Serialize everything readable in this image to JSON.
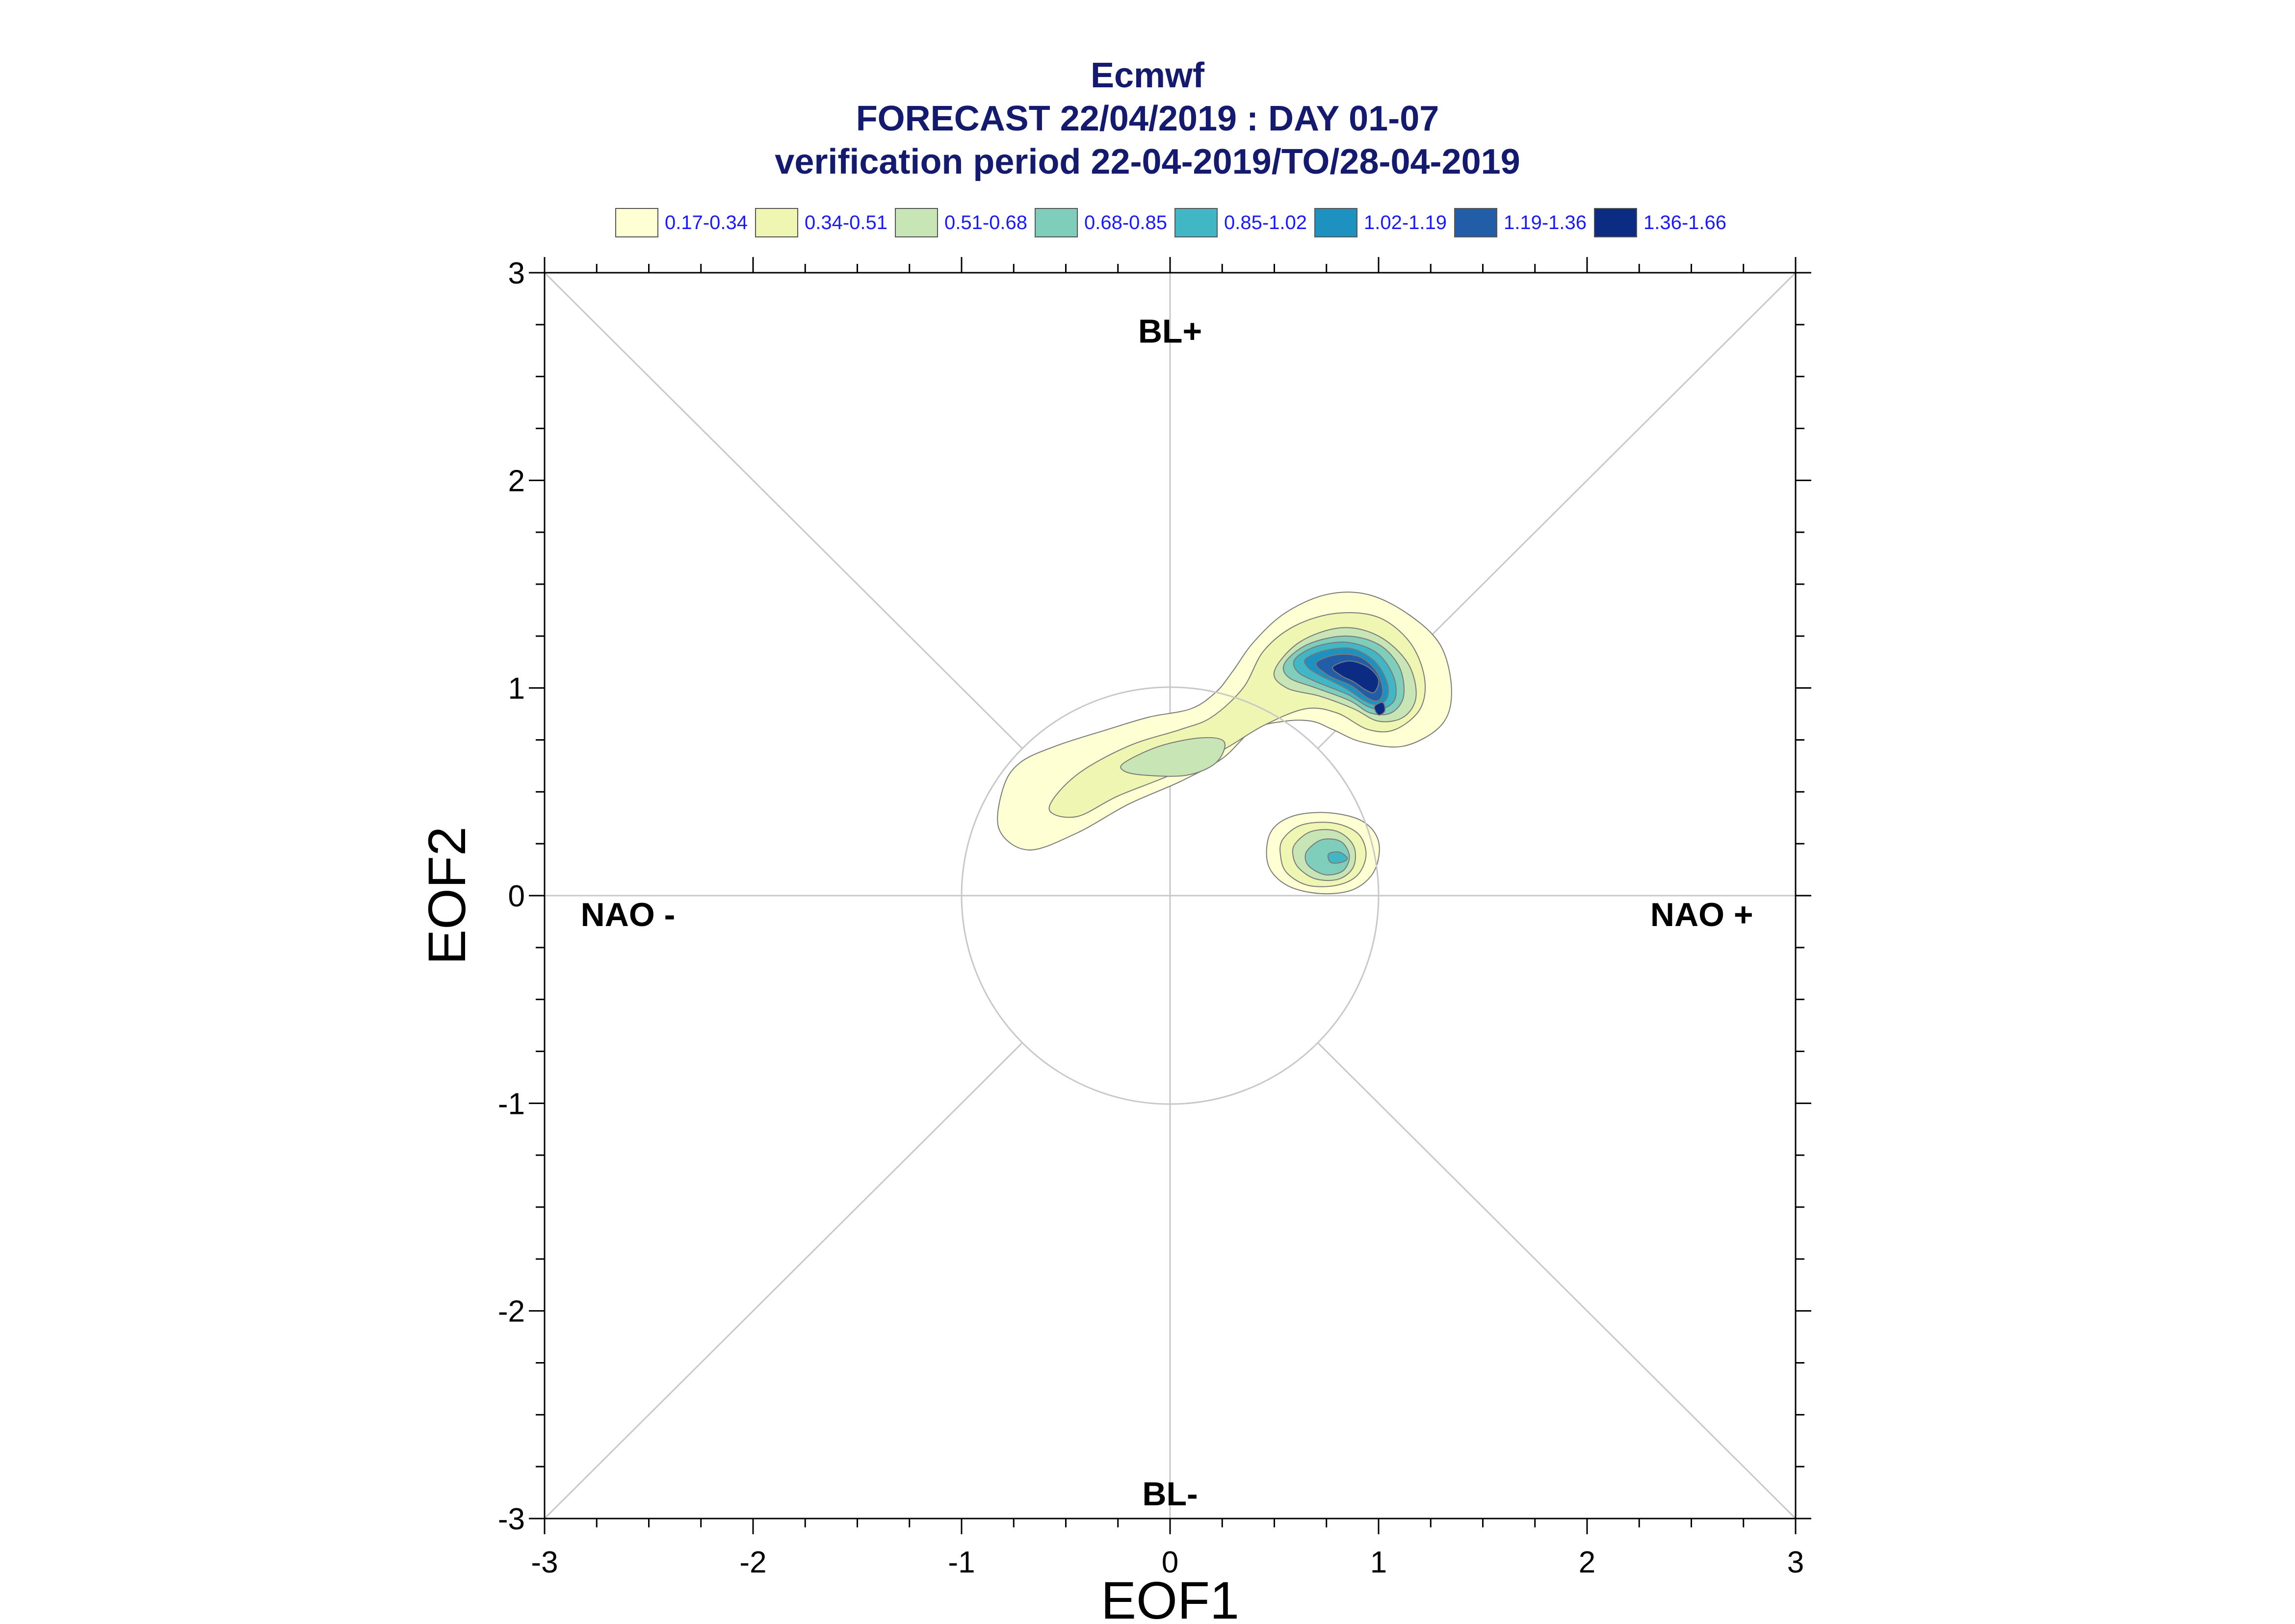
{
  "chart_data": {
    "type": "contour",
    "title": [
      "Ecmwf",
      "FORECAST 22/04/2019 : DAY 01-07",
      "verification period 22-04-2019/TO/28-04-2019"
    ],
    "xlabel": "EOF1",
    "ylabel": "EOF2",
    "xlim": [
      -3,
      3
    ],
    "ylim": [
      -3,
      3
    ],
    "xticks": [
      -3,
      -2,
      -1,
      0,
      1,
      2,
      3
    ],
    "yticks": [
      -3,
      -2,
      -1,
      0,
      1,
      2,
      3
    ],
    "grid": "reference lines: axes through origin, diagonals, unit circle",
    "legend": {
      "placement": "top",
      "levels": [
        {
          "label": "0.17-0.34",
          "color": "#ffffd4"
        },
        {
          "label": "0.34-0.51",
          "color": "#eef6b2"
        },
        {
          "label": "0.51-0.68",
          "color": "#c8e5b5"
        },
        {
          "label": "0.68-0.85",
          "color": "#7fcdbb"
        },
        {
          "label": "0.85-1.02",
          "color": "#41b6c4"
        },
        {
          "label": "1.02-1.19",
          "color": "#1d91c0"
        },
        {
          "label": "1.19-1.36",
          "color": "#225ea8"
        },
        {
          "label": "1.36-1.66",
          "color": "#0c2c84"
        }
      ]
    },
    "regime_labels": [
      {
        "text": "BL+",
        "x": 0,
        "y": 2.72
      },
      {
        "text": "BL-",
        "x": 0,
        "y": -2.88
      },
      {
        "text": "NAO -",
        "x": -2.6,
        "y": -0.09
      },
      {
        "text": "NAO +",
        "x": 2.55,
        "y": -0.09
      }
    ],
    "density_regions": [
      {
        "level": 0,
        "points": [
          [
            -0.8,
            0.52
          ],
          [
            -0.72,
            0.64
          ],
          [
            -0.55,
            0.72
          ],
          [
            -0.3,
            0.8
          ],
          [
            -0.1,
            0.86
          ],
          [
            0.1,
            0.9
          ],
          [
            0.22,
            0.98
          ],
          [
            0.3,
            1.08
          ],
          [
            0.4,
            1.22
          ],
          [
            0.55,
            1.36
          ],
          [
            0.75,
            1.45
          ],
          [
            0.95,
            1.45
          ],
          [
            1.15,
            1.35
          ],
          [
            1.3,
            1.2
          ],
          [
            1.35,
            0.98
          ],
          [
            1.3,
            0.82
          ],
          [
            1.12,
            0.72
          ],
          [
            0.92,
            0.74
          ],
          [
            0.78,
            0.8
          ],
          [
            0.68,
            0.84
          ],
          [
            0.55,
            0.84
          ],
          [
            0.4,
            0.8
          ],
          [
            0.25,
            0.66
          ],
          [
            0.05,
            0.55
          ],
          [
            -0.2,
            0.44
          ],
          [
            -0.45,
            0.3
          ],
          [
            -0.68,
            0.22
          ],
          [
            -0.82,
            0.32
          ]
        ]
      },
      {
        "level": 1,
        "points": [
          [
            -0.58,
            0.42
          ],
          [
            -0.45,
            0.58
          ],
          [
            -0.2,
            0.72
          ],
          [
            0.05,
            0.8
          ],
          [
            0.2,
            0.86
          ],
          [
            0.35,
            1.0
          ],
          [
            0.45,
            1.18
          ],
          [
            0.6,
            1.3
          ],
          [
            0.8,
            1.36
          ],
          [
            1.0,
            1.34
          ],
          [
            1.15,
            1.22
          ],
          [
            1.22,
            1.05
          ],
          [
            1.2,
            0.9
          ],
          [
            1.08,
            0.8
          ],
          [
            0.95,
            0.8
          ],
          [
            0.8,
            0.88
          ],
          [
            0.65,
            0.9
          ],
          [
            0.45,
            0.82
          ],
          [
            0.25,
            0.7
          ],
          [
            0.0,
            0.58
          ],
          [
            -0.25,
            0.48
          ],
          [
            -0.45,
            0.38
          ]
        ]
      },
      {
        "level": 2,
        "points": [
          [
            -0.22,
            0.64
          ],
          [
            -0.05,
            0.72
          ],
          [
            0.15,
            0.76
          ],
          [
            0.26,
            0.74
          ],
          [
            0.22,
            0.64
          ],
          [
            0.08,
            0.58
          ],
          [
            -0.12,
            0.58
          ],
          [
            -0.22,
            0.6
          ]
        ]
      },
      {
        "level": 2,
        "points": [
          [
            0.5,
            1.08
          ],
          [
            0.62,
            1.22
          ],
          [
            0.82,
            1.29
          ],
          [
            1.0,
            1.25
          ],
          [
            1.14,
            1.12
          ],
          [
            1.18,
            0.96
          ],
          [
            1.12,
            0.86
          ],
          [
            1.0,
            0.84
          ],
          [
            0.88,
            0.9
          ],
          [
            0.72,
            0.96
          ],
          [
            0.56,
            1.0
          ]
        ]
      },
      {
        "level": 3,
        "points": [
          [
            0.55,
            1.12
          ],
          [
            0.66,
            1.21
          ],
          [
            0.84,
            1.25
          ],
          [
            1.0,
            1.21
          ],
          [
            1.1,
            1.1
          ],
          [
            1.12,
            0.96
          ],
          [
            1.06,
            0.88
          ],
          [
            0.96,
            0.88
          ],
          [
            0.86,
            0.94
          ],
          [
            0.7,
            1.0
          ],
          [
            0.57,
            1.05
          ]
        ]
      },
      {
        "level": 4,
        "points": [
          [
            0.6,
            1.14
          ],
          [
            0.7,
            1.2
          ],
          [
            0.85,
            1.22
          ],
          [
            0.99,
            1.17
          ],
          [
            1.07,
            1.06
          ],
          [
            1.08,
            0.95
          ],
          [
            1.02,
            0.9
          ],
          [
            0.95,
            0.91
          ],
          [
            0.85,
            0.97
          ],
          [
            0.7,
            1.03
          ],
          [
            0.61,
            1.08
          ]
        ]
      },
      {
        "level": 5,
        "points": [
          [
            0.65,
            1.14
          ],
          [
            0.74,
            1.18
          ],
          [
            0.87,
            1.19
          ],
          [
            0.98,
            1.13
          ],
          [
            1.04,
            1.03
          ],
          [
            1.04,
            0.95
          ],
          [
            0.99,
            0.92
          ],
          [
            0.93,
            0.94
          ],
          [
            0.84,
            1.0
          ],
          [
            0.72,
            1.06
          ],
          [
            0.66,
            1.1
          ]
        ]
      },
      {
        "level": 6,
        "points": [
          [
            0.7,
            1.12
          ],
          [
            0.8,
            1.16
          ],
          [
            0.91,
            1.15
          ],
          [
            0.99,
            1.08
          ],
          [
            1.02,
            0.99
          ],
          [
            1.0,
            0.94
          ],
          [
            0.95,
            0.95
          ],
          [
            0.87,
            1.01
          ],
          [
            0.76,
            1.06
          ]
        ]
      },
      {
        "level": 7,
        "points": [
          [
            0.78,
            1.1
          ],
          [
            0.86,
            1.13
          ],
          [
            0.95,
            1.1
          ],
          [
            1.0,
            1.04
          ],
          [
            0.98,
            0.98
          ],
          [
            0.94,
            0.99
          ],
          [
            0.88,
            1.03
          ],
          [
            0.82,
            1.06
          ]
        ]
      },
      {
        "level": 7,
        "points": [
          [
            0.98,
            0.91
          ],
          [
            1.02,
            0.93
          ],
          [
            1.03,
            0.89
          ],
          [
            1.0,
            0.87
          ]
        ]
      },
      {
        "level": 0,
        "points": [
          [
            0.48,
            0.3
          ],
          [
            0.58,
            0.38
          ],
          [
            0.75,
            0.4
          ],
          [
            0.92,
            0.36
          ],
          [
            1.0,
            0.26
          ],
          [
            0.98,
            0.12
          ],
          [
            0.88,
            0.03
          ],
          [
            0.72,
            0.01
          ],
          [
            0.56,
            0.05
          ],
          [
            0.47,
            0.15
          ]
        ]
      },
      {
        "level": 1,
        "points": [
          [
            0.54,
            0.27
          ],
          [
            0.63,
            0.34
          ],
          [
            0.78,
            0.35
          ],
          [
            0.9,
            0.3
          ],
          [
            0.94,
            0.2
          ],
          [
            0.9,
            0.1
          ],
          [
            0.8,
            0.05
          ],
          [
            0.66,
            0.05
          ],
          [
            0.56,
            0.11
          ],
          [
            0.53,
            0.19
          ]
        ]
      },
      {
        "level": 2,
        "points": [
          [
            0.6,
            0.25
          ],
          [
            0.68,
            0.31
          ],
          [
            0.8,
            0.31
          ],
          [
            0.88,
            0.24
          ],
          [
            0.88,
            0.14
          ],
          [
            0.81,
            0.08
          ],
          [
            0.7,
            0.08
          ],
          [
            0.62,
            0.13
          ],
          [
            0.59,
            0.19
          ]
        ]
      },
      {
        "level": 3,
        "points": [
          [
            0.66,
            0.22
          ],
          [
            0.73,
            0.27
          ],
          [
            0.82,
            0.26
          ],
          [
            0.86,
            0.19
          ],
          [
            0.83,
            0.12
          ],
          [
            0.75,
            0.1
          ],
          [
            0.68,
            0.13
          ],
          [
            0.65,
            0.17
          ]
        ]
      },
      {
        "level": 4,
        "points": [
          [
            0.76,
            0.2
          ],
          [
            0.81,
            0.21
          ],
          [
            0.85,
            0.18
          ],
          [
            0.82,
            0.16
          ],
          [
            0.77,
            0.16
          ]
        ]
      }
    ]
  }
}
